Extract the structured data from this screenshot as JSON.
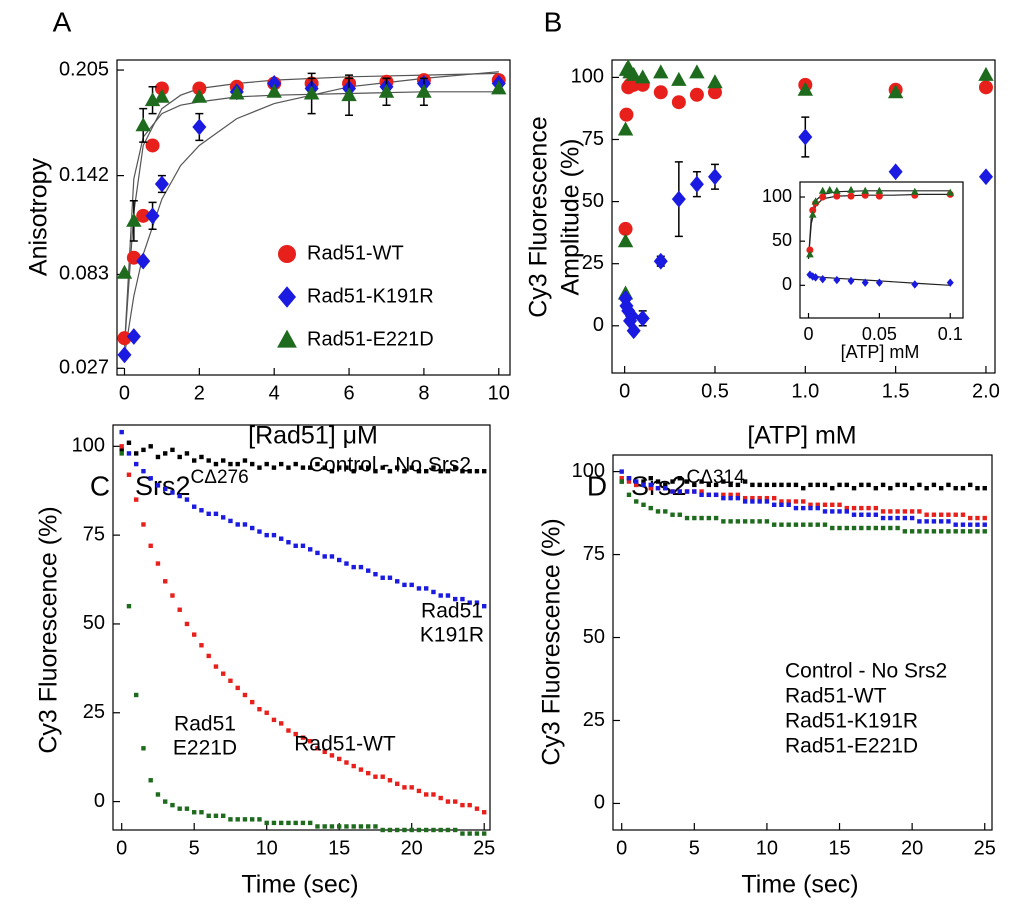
{
  "chart_data": [
    {
      "type": "scatter",
      "panel": "A",
      "x_label": "[Rad51] μM",
      "y_label": "Anisotropy",
      "xlim": [
        -0.2,
        10.3
      ],
      "ylim": [
        0.023,
        0.211
      ],
      "xticks": [
        0,
        2,
        4,
        6,
        8,
        10
      ],
      "yticks": [
        0.027,
        0.083,
        0.142,
        0.205
      ],
      "legend": "right",
      "fit_x": [
        0,
        0.25,
        0.5,
        1,
        1.5,
        2,
        3,
        4,
        6,
        8,
        10
      ],
      "series": [
        {
          "name": "Rad51-WT",
          "color": "#e8201c",
          "marker": "circle",
          "x": [
            0,
            0.25,
            0.5,
            0.75,
            1,
            2,
            3,
            4,
            5,
            6,
            7,
            8,
            10
          ],
          "values": [
            0.045,
            0.093,
            0.118,
            0.16,
            0.194,
            0.194,
            0.195,
            0.197,
            0.197,
            0.197,
            0.198,
            0.199,
            0.199
          ],
          "fit": [
            0.04,
            0.12,
            0.16,
            0.182,
            0.19,
            0.194,
            0.197,
            0.199,
            0.201,
            0.202,
            0.203
          ]
        },
        {
          "name": "Rad51-K191R",
          "color": "#1a1ae0",
          "marker": "diamond",
          "x": [
            0,
            0.25,
            0.5,
            0.75,
            1,
            2,
            3,
            4,
            5,
            6,
            7,
            8,
            10
          ],
          "values": [
            0.035,
            0.046,
            0.091,
            0.118,
            0.137,
            0.171,
            0.192,
            0.197,
            0.194,
            0.194,
            0.195,
            0.197,
            0.197
          ],
          "errors": [
            null,
            null,
            null,
            0.008,
            0.005,
            0.008,
            null,
            null,
            0.006,
            0.006,
            0.005,
            null,
            null
          ],
          "fit": [
            0.035,
            0.07,
            0.095,
            0.128,
            0.148,
            0.16,
            0.176,
            0.185,
            0.195,
            0.2,
            0.204
          ]
        },
        {
          "name": "Rad51-E221D",
          "color": "#1e6b1e",
          "marker": "triangle",
          "x": [
            0,
            0.25,
            0.5,
            0.75,
            1,
            2,
            3,
            4,
            5,
            6,
            7,
            8,
            10
          ],
          "values": [
            0.084,
            0.115,
            0.172,
            0.187,
            0.189,
            0.189,
            0.191,
            0.192,
            0.191,
            0.19,
            0.192,
            0.192,
            0.194
          ],
          "errors": [
            null,
            0.012,
            0.01,
            0.008,
            null,
            null,
            null,
            null,
            0.012,
            0.012,
            0.008,
            0.008,
            null
          ],
          "fit": [
            0.04,
            0.14,
            0.165,
            0.179,
            0.184,
            0.186,
            0.189,
            0.19,
            0.191,
            0.192,
            0.192
          ]
        }
      ]
    },
    {
      "type": "scatter",
      "panel": "B",
      "x_label": "[ATP] mM",
      "y_label": [
        "Cy3 Fluorescence",
        "Amplitude (%)"
      ],
      "xlim": [
        -0.07,
        2.05
      ],
      "ylim": [
        -19,
        107
      ],
      "xticks": [
        0,
        0.5,
        {
          "value": 1,
          "label": "1.0"
        },
        1.5,
        {
          "value": 2,
          "label": "2.0"
        }
      ],
      "yticks": [
        0,
        25,
        50,
        75,
        100
      ],
      "series": [
        {
          "color": "#e8201c",
          "marker": "circle",
          "x": [
            0.005,
            0.01,
            0.02,
            0.03,
            0.04,
            0.05,
            0.1,
            0.2,
            0.3,
            0.4,
            0.5,
            1.0,
            1.5,
            2.0
          ],
          "values": [
            39,
            85,
            96,
            97,
            97,
            97,
            97,
            94,
            90,
            93,
            94,
            97,
            95,
            96
          ]
        },
        {
          "color": "#1e6b1e",
          "marker": "triangle",
          "x": [
            0.005,
            0.005,
            0.005,
            0.01,
            0.02,
            0.03,
            0.05,
            0.1,
            0.2,
            0.3,
            0.4,
            0.5,
            1.0,
            1.5,
            2.0
          ],
          "values": [
            13,
            34,
            79,
            103,
            104,
            102,
            101,
            100,
            102,
            99,
            102,
            98,
            95,
            94,
            101
          ]
        },
        {
          "color": "#1a1ae0",
          "marker": "diamond",
          "x": [
            0.005,
            0.01,
            0.02,
            0.03,
            0.04,
            0.05,
            0.1,
            0.2,
            0.3,
            0.4,
            0.5,
            1.0,
            1.5,
            2.0
          ],
          "values": [
            11,
            8,
            6,
            2,
            4,
            -2,
            3,
            26,
            51,
            57,
            60,
            76,
            62,
            60
          ],
          "errors": [
            null,
            null,
            null,
            null,
            null,
            null,
            3,
            2,
            15,
            5,
            5,
            8,
            null,
            null
          ]
        }
      ]
    },
    {
      "type": "scatter",
      "x_label": "[ATP] mM",
      "xlim": [
        -0.006,
        0.109
      ],
      "ylim": [
        -37,
        117
      ],
      "xticks": [
        0,
        0.05,
        0.1
      ],
      "yticks": [
        0,
        50,
        100
      ],
      "fit_x": [
        0,
        0.002,
        0.005,
        0.01,
        0.02,
        0.04,
        0.06,
        0.08,
        0.1
      ],
      "series": [
        {
          "color": "#e8201c",
          "marker": "circle",
          "x": [
            0.001,
            0.003,
            0.005,
            0.01,
            0.02,
            0.03,
            0.04,
            0.05,
            0.075,
            0.1
          ],
          "values": [
            40,
            85,
            93,
            100,
            101,
            101,
            102,
            101,
            102,
            103
          ],
          "fit": [
            30,
            70,
            90,
            98,
            101,
            102,
            102,
            103,
            103
          ]
        },
        {
          "color": "#1e6b1e",
          "marker": "triangle",
          "x": [
            0.001,
            0.003,
            0.005,
            0.01,
            0.015,
            0.02,
            0.03,
            0.04,
            0.05,
            0.075,
            0.1
          ],
          "values": [
            35,
            80,
            95,
            107,
            108,
            107,
            108,
            107,
            107,
            106,
            105
          ],
          "fit": [
            30,
            78,
            96,
            103,
            106,
            107,
            107,
            107,
            107
          ]
        },
        {
          "color": "#1a1ae0",
          "marker": "diamond",
          "x": [
            0.001,
            0.003,
            0.005,
            0.01,
            0.02,
            0.03,
            0.04,
            0.05,
            0.075,
            0.1
          ],
          "values": [
            12,
            10,
            9,
            7,
            6,
            5,
            3,
            3,
            1,
            3
          ],
          "fit": [
            12,
            11,
            10,
            9,
            8,
            6,
            4,
            2,
            0
          ]
        }
      ]
    },
    {
      "type": "scatter",
      "panel": "C",
      "title": "Srs2",
      "title_superscript": "CΔ276",
      "x_label": "Time (sec)",
      "y_label": "Cy3 Fluorescence (%)",
      "xlim": [
        -0.6,
        25.4
      ],
      "ylim": [
        -8,
        106
      ],
      "xticks": [
        0,
        5,
        10,
        15,
        20,
        25
      ],
      "yticks": [
        0,
        25,
        50,
        75,
        100
      ],
      "x": [
        0,
        0.5,
        1,
        1.5,
        2,
        2.5,
        3,
        3.5,
        4,
        4.5,
        5,
        5.5,
        6,
        6.5,
        7,
        7.5,
        8,
        8.5,
        9,
        9.5,
        10,
        10.5,
        11,
        11.5,
        12,
        12.5,
        13,
        13.5,
        14,
        14.5,
        15,
        15.5,
        16,
        16.5,
        17,
        17.5,
        18,
        18.5,
        19,
        19.5,
        20,
        20.5,
        21,
        21.5,
        22,
        22.5,
        23,
        23.5,
        24,
        24.5,
        25
      ],
      "series": [
        {
          "label": [
            "Control - No Srs2"
          ],
          "color": "#000000",
          "marker": "square",
          "values": [
            99,
            101,
            98,
            99,
            100,
            97,
            98,
            99,
            97,
            98,
            96,
            97,
            96,
            95,
            96,
            95,
            95,
            96,
            95,
            94,
            95,
            94,
            95,
            94,
            95,
            94,
            94,
            95,
            94,
            93,
            94,
            94,
            93,
            94,
            94,
            93,
            94,
            93,
            94,
            93,
            94,
            93,
            93,
            94,
            93,
            93,
            94,
            93,
            93,
            93,
            93
          ]
        },
        {
          "label": [
            "Rad51",
            "K191R"
          ],
          "color": "#1a1ae0",
          "marker": "square",
          "values": [
            104,
            98,
            95,
            93,
            91,
            89,
            88,
            87,
            86,
            85,
            83,
            82,
            81,
            81,
            80,
            79,
            78,
            78,
            77,
            76,
            75,
            75,
            74,
            73,
            72,
            72,
            71,
            70,
            69,
            69,
            68,
            67,
            66,
            66,
            65,
            64,
            63,
            63,
            62,
            61,
            61,
            60,
            60,
            59,
            58,
            58,
            57,
            57,
            56,
            56,
            55
          ]
        },
        {
          "label": [
            "Rad51-WT"
          ],
          "color": "#e8201c",
          "marker": "square",
          "values": [
            100,
            92,
            85,
            78,
            72,
            67,
            62,
            58,
            54,
            50,
            47,
            44,
            41,
            38,
            36,
            34,
            32,
            30,
            28,
            26,
            25,
            23,
            22,
            20,
            19,
            18,
            17,
            15,
            14,
            13,
            12,
            11,
            10,
            9,
            8,
            7,
            7,
            6,
            5,
            4,
            4,
            3,
            2,
            2,
            1,
            0,
            0,
            -1,
            -1,
            -2,
            -3
          ]
        },
        {
          "label": [
            "Rad51",
            "E221D"
          ],
          "color": "#1e6b1e",
          "marker": "square",
          "values": [
            98,
            55,
            30,
            15,
            6,
            2,
            0,
            -1,
            -2,
            -2,
            -3,
            -3,
            -4,
            -4,
            -4,
            -5,
            -5,
            -5,
            -5,
            -5,
            -6,
            -6,
            -6,
            -6,
            -6,
            -6,
            -6,
            -7,
            -7,
            -7,
            -7,
            -7,
            -7,
            -7,
            -7,
            -7,
            -8,
            -8,
            -8,
            -8,
            -8,
            -8,
            -8,
            -8,
            -8,
            -8,
            -8,
            -9,
            -9,
            -9,
            -9
          ]
        }
      ]
    },
    {
      "type": "scatter",
      "panel": "D",
      "title": "Srs2",
      "title_superscript": "CΔ314",
      "x_label": "Time (sec)",
      "y_label": "Cy3 Fluorescence (%)",
      "xlim": [
        -0.6,
        25.5
      ],
      "ylim": [
        -8,
        105
      ],
      "xticks": [
        0,
        5,
        10,
        15,
        20,
        25
      ],
      "yticks": [
        0,
        25,
        50,
        75,
        100
      ],
      "legend": "lower right",
      "x": [
        0,
        0.5,
        1,
        1.5,
        2,
        2.5,
        3,
        3.5,
        4,
        4.5,
        5,
        5.5,
        6,
        6.5,
        7,
        7.5,
        8,
        8.5,
        9,
        9.5,
        10,
        10.5,
        11,
        11.5,
        12,
        12.5,
        13,
        13.5,
        14,
        14.5,
        15,
        15.5,
        16,
        16.5,
        17,
        17.5,
        18,
        18.5,
        19,
        19.5,
        20,
        20.5,
        21,
        21.5,
        22,
        22.5,
        23,
        23.5,
        24,
        24.5,
        25
      ],
      "series": [
        {
          "name": "Control - No Srs2",
          "color": "#000000",
          "marker": "square",
          "values": [
            97,
            98,
            96,
            97,
            98,
            97,
            96,
            97,
            98,
            97,
            96,
            97,
            96,
            96,
            97,
            96,
            96,
            97,
            96,
            96,
            96,
            96,
            96,
            96,
            96,
            95,
            96,
            96,
            96,
            95,
            96,
            96,
            95,
            96,
            96,
            95,
            96,
            95,
            96,
            96,
            95,
            96,
            95,
            96,
            95,
            96,
            95,
            95,
            96,
            95,
            95
          ]
        },
        {
          "name": "Rad51-WT",
          "color": "#e8201c",
          "marker": "square",
          "values": [
            98,
            97,
            96,
            96,
            95,
            95,
            95,
            94,
            94,
            94,
            94,
            94,
            93,
            93,
            93,
            93,
            93,
            92,
            92,
            92,
            92,
            92,
            91,
            91,
            91,
            91,
            90,
            90,
            90,
            90,
            90,
            89,
            89,
            89,
            89,
            89,
            88,
            88,
            88,
            88,
            88,
            88,
            87,
            87,
            87,
            87,
            87,
            87,
            86,
            86,
            86
          ]
        },
        {
          "name": "Rad51-K191R",
          "color": "#1a1ae0",
          "marker": "square",
          "values": [
            100,
            98,
            97,
            96,
            96,
            95,
            95,
            94,
            94,
            94,
            94,
            93,
            93,
            93,
            92,
            92,
            92,
            91,
            91,
            91,
            91,
            90,
            90,
            90,
            89,
            89,
            89,
            89,
            88,
            88,
            88,
            88,
            87,
            87,
            87,
            87,
            86,
            86,
            86,
            86,
            86,
            85,
            85,
            85,
            85,
            85,
            84,
            84,
            84,
            84,
            84
          ]
        },
        {
          "name": "Rad51-E221D",
          "color": "#1e6b1e",
          "marker": "square",
          "values": [
            97,
            93,
            91,
            90,
            89,
            88,
            88,
            87,
            87,
            86,
            86,
            86,
            86,
            86,
            85,
            85,
            85,
            85,
            85,
            85,
            85,
            84,
            84,
            84,
            84,
            84,
            84,
            84,
            84,
            83,
            83,
            83,
            83,
            83,
            83,
            83,
            83,
            83,
            83,
            82,
            82,
            82,
            82,
            82,
            82,
            82,
            82,
            82,
            82,
            82,
            82
          ]
        }
      ]
    }
  ]
}
